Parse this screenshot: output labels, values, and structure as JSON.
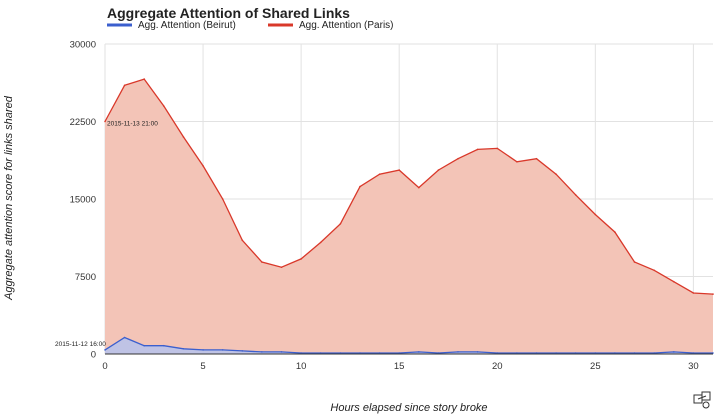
{
  "colors": {
    "beirut_line": "#3b5fce",
    "beirut_fill": "#b9c3ea",
    "paris_line": "#d9382a",
    "paris_fill": "#f3c4b7"
  },
  "icons": {
    "corner": "share-graph-icon"
  },
  "chart_data": {
    "type": "area",
    "title": "Aggregate Attention of Shared Links",
    "xlabel": "Hours elapsed since story broke",
    "ylabel": "Aggregate attention score for links shared",
    "xlim": [
      0,
      31
    ],
    "ylim": [
      0,
      30000
    ],
    "x_ticks": [
      "0",
      "5",
      "10",
      "15",
      "20",
      "25",
      "30"
    ],
    "y_ticks": [
      "0",
      "7500",
      "15000",
      "22500",
      "30000"
    ],
    "grid": true,
    "legend_position": "top",
    "x": [
      0,
      1,
      2,
      3,
      4,
      5,
      6,
      7,
      8,
      9,
      10,
      11,
      12,
      13,
      14,
      15,
      16,
      17,
      18,
      19,
      20,
      21,
      22,
      23,
      24,
      25,
      26,
      27,
      28,
      29,
      30,
      31
    ],
    "series": [
      {
        "name": "Agg. Attention (Beirut)",
        "values": [
          400,
          1600,
          800,
          800,
          500,
          400,
          400,
          300,
          200,
          200,
          100,
          100,
          100,
          100,
          100,
          100,
          200,
          100,
          200,
          200,
          100,
          100,
          100,
          100,
          100,
          100,
          100,
          100,
          100,
          200,
          100,
          100
        ]
      },
      {
        "name": "Agg. Attention (Paris)",
        "values": [
          22500,
          26000,
          26600,
          24000,
          21000,
          18200,
          15000,
          11000,
          8900,
          8400,
          9200,
          10800,
          12600,
          16200,
          17400,
          17800,
          16100,
          17800,
          18900,
          19800,
          19900,
          18600,
          18900,
          17400,
          15400,
          13500,
          11800,
          8900,
          8100,
          7000,
          5900,
          5800
        ]
      }
    ],
    "annotations": [
      {
        "text": "2015-11-13 21:00",
        "x": 0,
        "y": 22500
      },
      {
        "text": "2015-11-12 16:00",
        "x": 0,
        "y": 400
      }
    ]
  }
}
